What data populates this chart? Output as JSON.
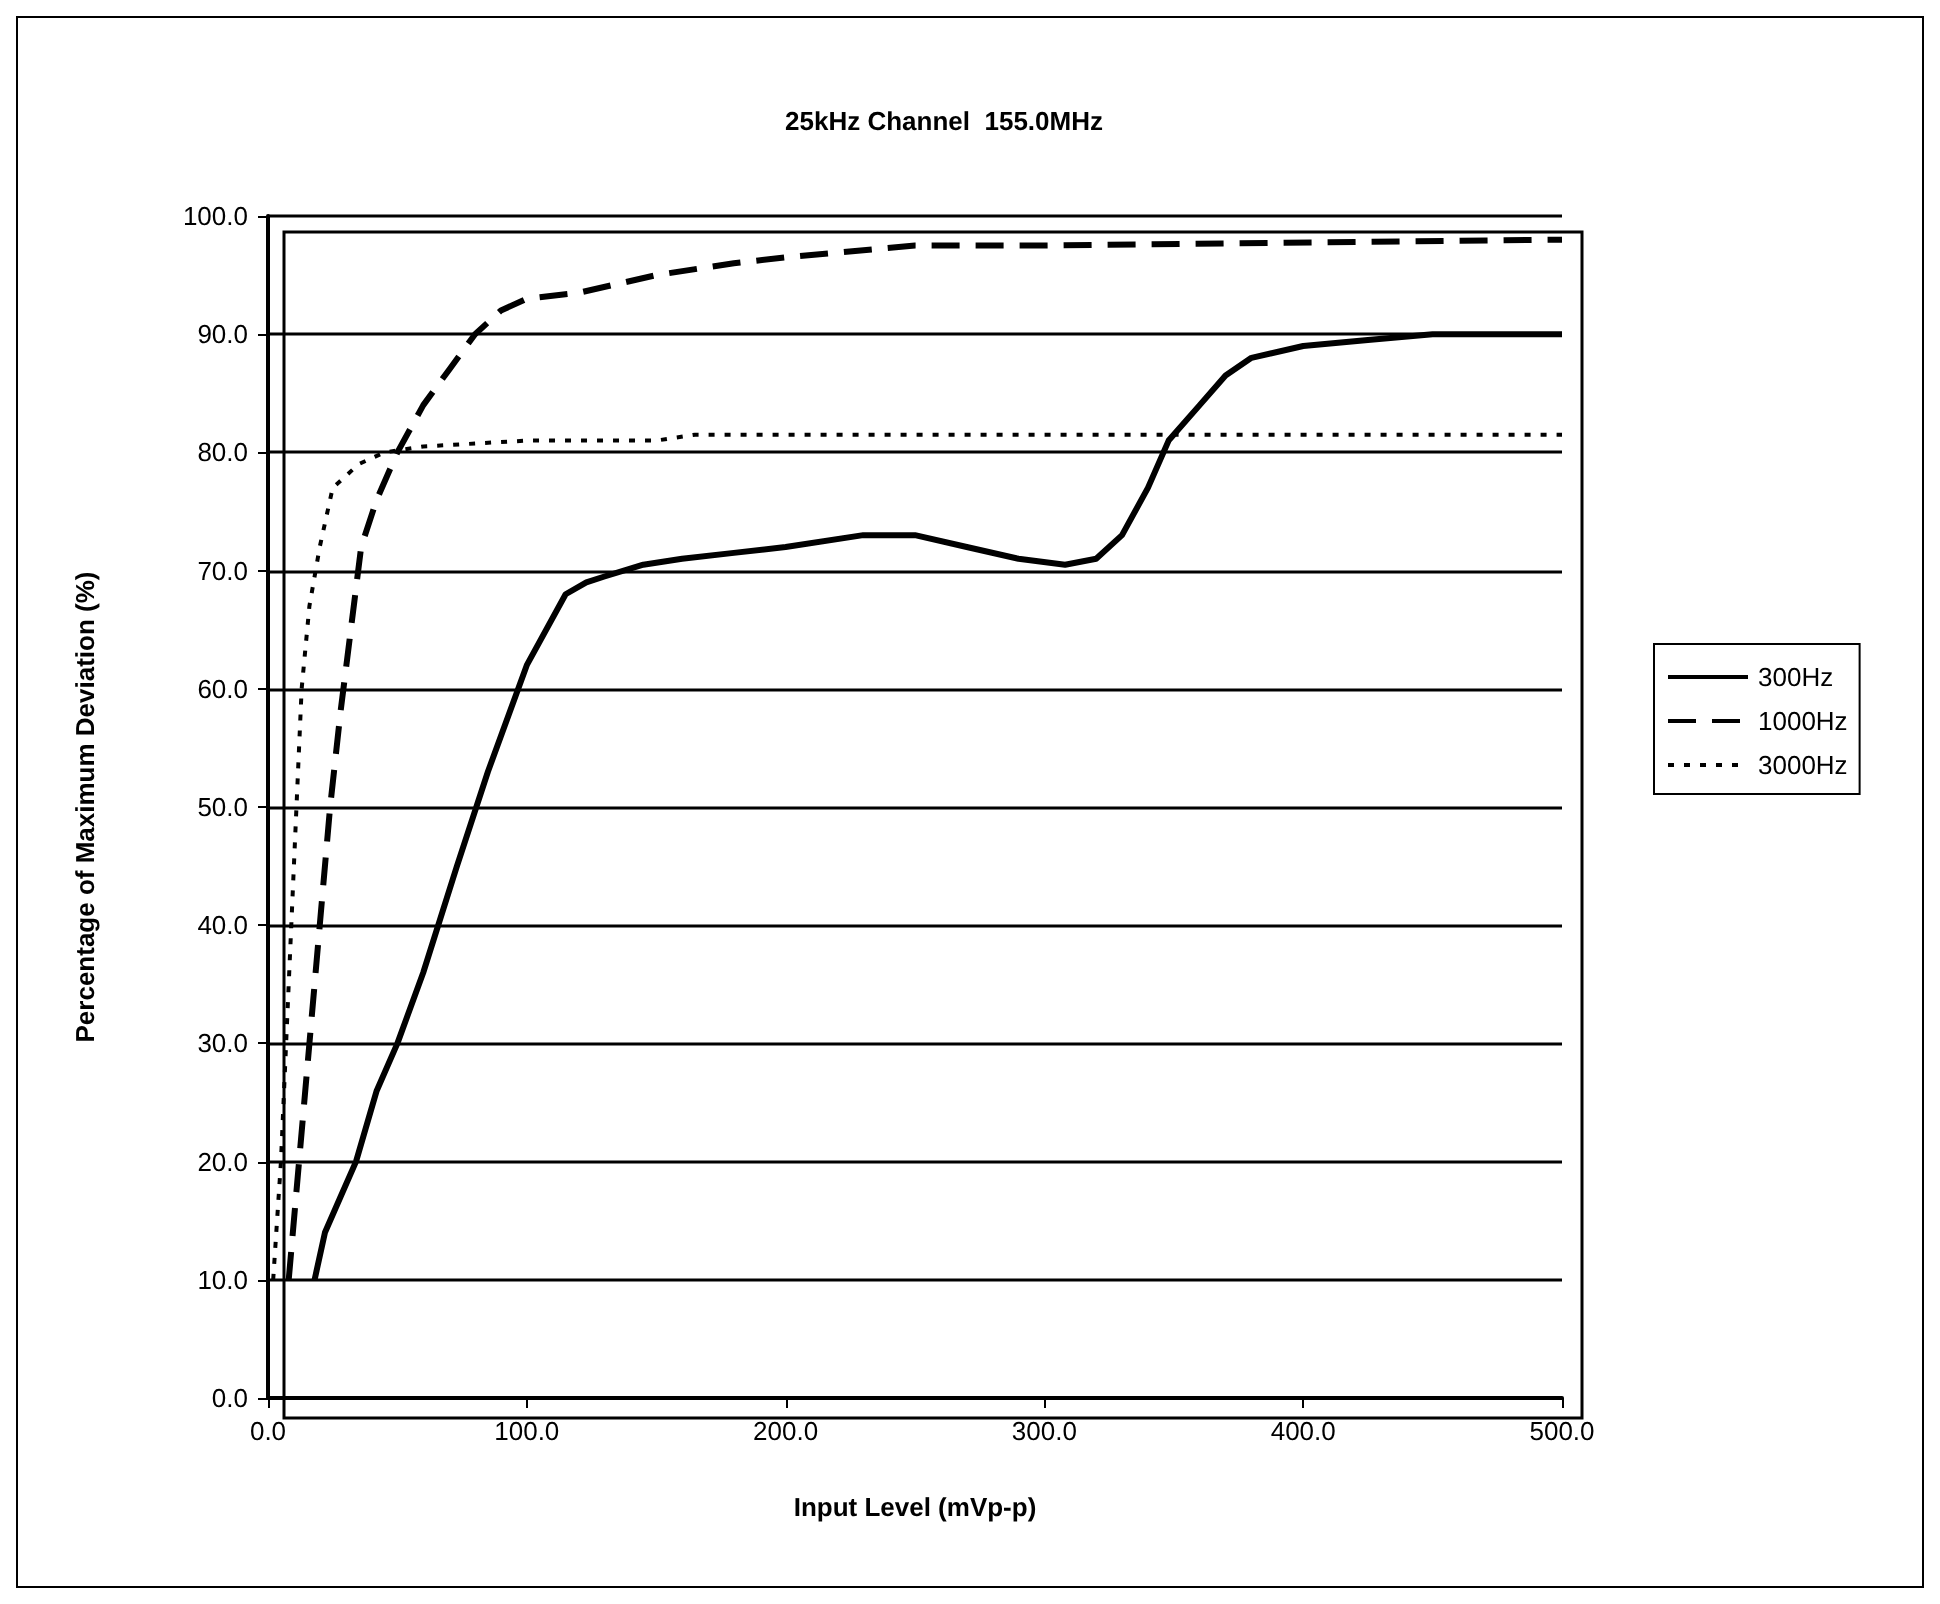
{
  "chart_data": {
    "type": "line",
    "title": "25kHz Channel  155.0MHz",
    "xlabel": "Input Level (mVp-p)",
    "ylabel": "Percentage of Maximum Deviation (%)",
    "xlim": [
      0,
      500
    ],
    "xticks": [
      {
        "value": 0,
        "label": "0.0"
      },
      {
        "value": 100,
        "label": "100.0"
      },
      {
        "value": 200,
        "label": "200.0"
      },
      {
        "value": 300,
        "label": "300.0"
      },
      {
        "value": 400,
        "label": "400.0"
      },
      {
        "value": 500,
        "label": "500.0"
      }
    ],
    "ylim": [
      0,
      100
    ],
    "yticks": [
      {
        "value": 0,
        "label": "0.0"
      },
      {
        "value": 10,
        "label": "10.0"
      },
      {
        "value": 20,
        "label": "20.0"
      },
      {
        "value": 30,
        "label": "30.0"
      },
      {
        "value": 40,
        "label": "40.0"
      },
      {
        "value": 50,
        "label": "50.0"
      },
      {
        "value": 60,
        "label": "60.0"
      },
      {
        "value": 70,
        "label": "70.0"
      },
      {
        "value": 80,
        "label": "80.0"
      },
      {
        "value": 90,
        "label": "90.0"
      },
      {
        "value": 100,
        "label": "100.0"
      }
    ],
    "grid": "y",
    "legend": "right",
    "marker": "none",
    "series": [
      {
        "name": "300Hz",
        "color": "#000000",
        "line_style": "solid",
        "x": [
          18,
          22,
          28,
          34,
          42,
          50,
          60,
          73,
          85,
          100,
          115,
          123,
          130,
          145,
          160,
          180,
          200,
          230,
          250,
          270,
          290,
          308,
          320,
          330,
          340,
          348,
          360,
          370,
          380,
          400,
          425,
          450,
          500
        ],
        "values": [
          10,
          14,
          17,
          20,
          26,
          30,
          36,
          45,
          53,
          62,
          68,
          69,
          69.5,
          70.5,
          71,
          71.5,
          72,
          73,
          73,
          72,
          71,
          70.5,
          71,
          73,
          77,
          81,
          84,
          86.5,
          88,
          89,
          89.5,
          90,
          90
        ]
      },
      {
        "name": "1000Hz",
        "color": "#000000",
        "line_style": "dashed",
        "x": [
          8,
          12,
          16,
          20,
          24,
          28,
          32,
          36,
          42,
          50,
          60,
          70,
          80,
          90,
          100,
          120,
          150,
          180,
          200,
          250,
          300,
          500
        ],
        "values": [
          10,
          20,
          30,
          40,
          50,
          58,
          65,
          72,
          76,
          80,
          84,
          87,
          90,
          92,
          93,
          93.5,
          95,
          96,
          96.5,
          97.5,
          97.5,
          98
        ]
      },
      {
        "name": "3000Hz",
        "color": "#000000",
        "line_style": "dotted",
        "x": [
          2,
          5,
          7,
          9,
          11,
          13,
          16,
          20,
          25,
          35,
          45,
          60,
          100,
          150,
          165,
          500
        ],
        "values": [
          10,
          20,
          30,
          40,
          50,
          60,
          67,
          72,
          77,
          79,
          80,
          80.5,
          81,
          81,
          81.5,
          81.5
        ]
      }
    ]
  }
}
